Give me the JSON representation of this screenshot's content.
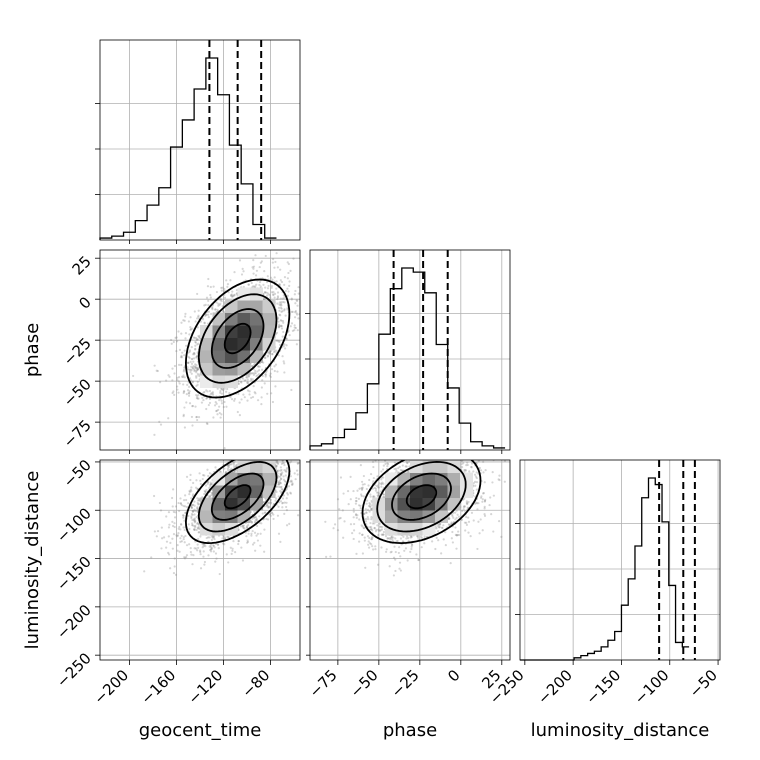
{
  "chart_data": {
    "type": "corner",
    "parameters": [
      {
        "name": "geocent_time",
        "range": [
          -225,
          -55
        ],
        "ticks": [
          -200,
          -160,
          -120,
          -80
        ],
        "tick_labels": [
          "−200",
          "−160",
          "−120",
          "−80"
        ],
        "quantiles": [
          -132,
          -108,
          -88
        ],
        "hist_bin_width": 10,
        "hist_counts": [
          0.01,
          0.02,
          0.04,
          0.1,
          0.18,
          0.27,
          0.48,
          0.62,
          0.78,
          0.94,
          0.75,
          0.49,
          0.29,
          0.08,
          0.01
        ]
      },
      {
        "name": "phase",
        "range": [
          -92,
          30
        ],
        "ticks": [
          -75,
          -50,
          -25,
          0,
          25
        ],
        "tick_labels": [
          "−75",
          "−50",
          "−25",
          "0",
          "25"
        ],
        "quantiles": [
          -41,
          -23,
          -8
        ],
        "hist_bin_width": 7,
        "hist_counts": [
          0.02,
          0.03,
          0.06,
          0.1,
          0.18,
          0.32,
          0.56,
          0.78,
          0.88,
          0.86,
          0.76,
          0.51,
          0.3,
          0.13,
          0.04,
          0.02,
          0.01
        ],
        "hist_start": -92
      },
      {
        "name": "luminosity_distance",
        "range": [
          -255,
          -48
        ],
        "ticks": [
          -250,
          -200,
          -150,
          -100,
          -50
        ],
        "tick_labels": [
          "−250",
          "−200",
          "−150",
          "−100",
          "−50"
        ],
        "quantiles": [
          -111,
          -86,
          -74
        ],
        "hist_bin_width": 7,
        "hist_counts": [
          0.0,
          0.0,
          0.0,
          0.0,
          0.0,
          0.0,
          0.0,
          0.0,
          0.01,
          0.02,
          0.03,
          0.04,
          0.06,
          0.09,
          0.13,
          0.25,
          0.37,
          0.52,
          0.74,
          0.83,
          0.8,
          0.63,
          0.34,
          0.08,
          0.06
        ]
      }
    ],
    "pairs": [
      {
        "x": "geocent_time",
        "y": "phase",
        "mean": [
          -108,
          -24
        ],
        "std": [
          22,
          18
        ],
        "corr": 0.42
      },
      {
        "x": "geocent_time",
        "y": "luminosity_distance",
        "mean": [
          -108,
          -86
        ],
        "std": [
          22,
          24
        ],
        "corr": 0.55
      },
      {
        "x": "phase",
        "y": "luminosity_distance",
        "mean": [
          -24,
          -86
        ],
        "std": [
          18,
          24
        ],
        "corr": 0.35
      }
    ],
    "grid": true,
    "quantiles_shown": [
      0.16,
      0.5,
      0.84
    ]
  }
}
